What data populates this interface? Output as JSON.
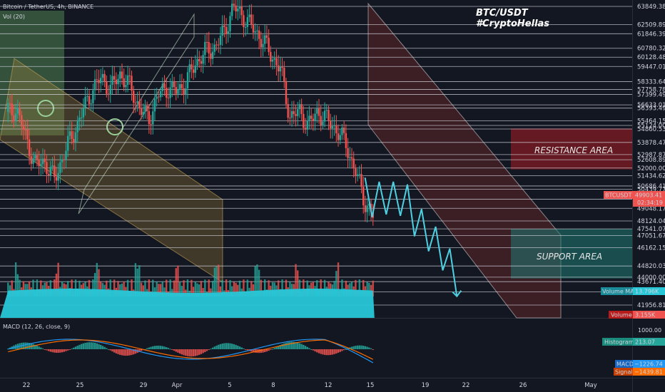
{
  "header": {
    "symbol_line": "Bitcoin / TetherUS, 4h, BINANCE",
    "volume_indicator": "Vol (20)",
    "macd_indicator": "MACD (12, 26, close, 9)"
  },
  "overlay": {
    "title": "BTC/USDT",
    "subtitle": "#CryptoHellas",
    "resistance_label": "RESISTANCE AREA",
    "support_label": "SUPPORT AREA"
  },
  "colors": {
    "background": "#131722",
    "up": "#26a69a",
    "down": "#ef5350",
    "volume_ma": "#27c7d8",
    "macd_line": "#2196f3",
    "signal_line": "#ff6d00",
    "resistance_zone": "#7a1c24",
    "support_zone": "#1f7a72",
    "channel_green": "#5e9a5e",
    "channel_orange": "#a8873a",
    "channel_red": "#8a2c2c"
  },
  "chart_data": {
    "type": "candlestick",
    "price_axis_ticks": [
      63849.38,
      62509.89,
      61846.39,
      60780.32,
      60128.48,
      59447.01,
      58333.64,
      57758.78,
      57399.49,
      56633.01,
      56393.49,
      55464.15,
      55124.0,
      54860.53,
      53878.47,
      52987.87,
      52608.89,
      52000.0,
      51434.62,
      50686.41,
      50439.77,
      49903.41,
      49720.27,
      49048.17,
      48124.04,
      47541.07,
      47051.67,
      46162.15,
      44820.03,
      44000.0,
      43671.4,
      42916.4,
      41956.81
    ],
    "price_axis_labels": [
      "63849.38",
      "62509.89",
      "61846.39",
      "60780.32",
      "60128.48",
      "59447.01",
      "58333.64",
      "57758.78",
      "57399.49",
      "56633.01",
      "56393.49",
      "55464.15",
      "55124.00",
      "54860.53",
      "53878.47",
      "52987.87",
      "52608.89",
      "52000.00",
      "51434.62",
      "50686.41",
      "50439.77",
      "",
      "49720.27",
      "49048.17",
      "48124.04",
      "47541.07",
      "47051.67",
      "46162.15",
      "44820.03",
      "44000.00",
      "43671.40",
      "42916.40",
      "41956.81"
    ],
    "x_axis_labels": [
      "22",
      "25",
      "29",
      "Apr",
      "5",
      "8",
      "12",
      "15",
      "19",
      "22",
      "26",
      "May"
    ],
    "last_price": {
      "symbol": "BTCUSDT",
      "price": "49903.41",
      "countdown": "02:34:19"
    },
    "volume": {
      "ma_label": "Volume MA",
      "ma_value": "13.796K",
      "label": "Volume",
      "value": "3.155K"
    },
    "macd": {
      "params": "12, 26, close, 9",
      "axis_ticks": [
        "1000.00"
      ],
      "histogram_label": "Histogram",
      "histogram_value": "213.07",
      "macd_label": "MACD",
      "macd_value": "−1226.74",
      "signal_label": "Signal",
      "signal_value": "−1439.81"
    },
    "zones": {
      "resistance": {
        "low": 51900,
        "high": 54900
      },
      "support": {
        "low": 43900,
        "high": 47541.07
      }
    },
    "price_path": [
      [
        0,
        56100
      ],
      [
        0.04,
        56300
      ],
      [
        0.08,
        54200
      ],
      [
        0.12,
        52200
      ],
      [
        0.16,
        52500
      ],
      [
        0.2,
        51100
      ],
      [
        0.24,
        53000
      ],
      [
        0.28,
        54500
      ],
      [
        0.32,
        56100
      ],
      [
        0.36,
        57700
      ],
      [
        0.4,
        58600
      ],
      [
        0.44,
        57800
      ],
      [
        0.48,
        58900
      ],
      [
        0.52,
        58000
      ],
      [
        0.56,
        56500
      ],
      [
        0.6,
        55500
      ],
      [
        0.64,
        57300
      ],
      [
        0.68,
        57900
      ],
      [
        0.72,
        57600
      ],
      [
        0.76,
        58300
      ],
      [
        0.8,
        59700
      ],
      [
        0.84,
        60500
      ],
      [
        0.88,
        60800
      ],
      [
        0.92,
        61900
      ],
      [
        0.96,
        63800
      ],
      [
        1,
        63200
      ],
      [
        1.04,
        62300
      ],
      [
        1.08,
        61500
      ],
      [
        1.12,
        60300
      ],
      [
        1.16,
        59300
      ],
      [
        1.2,
        55800
      ],
      [
        1.24,
        56100
      ],
      [
        1.28,
        55200
      ],
      [
        1.32,
        56100
      ],
      [
        1.36,
        55500
      ],
      [
        1.4,
        54800
      ],
      [
        1.44,
        53700
      ],
      [
        1.48,
        51700
      ],
      [
        1.52,
        49500
      ],
      [
        1.56,
        48300
      ]
    ],
    "projection": [
      [
        1.52,
        51300
      ],
      [
        1.55,
        48400
      ],
      [
        1.58,
        51000
      ],
      [
        1.61,
        48600
      ],
      [
        1.64,
        51000
      ],
      [
        1.67,
        48500
      ],
      [
        1.7,
        50800
      ],
      [
        1.73,
        47000
      ],
      [
        1.76,
        49000
      ],
      [
        1.79,
        45900
      ],
      [
        1.82,
        47700
      ],
      [
        1.85,
        44500
      ],
      [
        1.88,
        46100
      ],
      [
        1.91,
        42600
      ]
    ]
  }
}
